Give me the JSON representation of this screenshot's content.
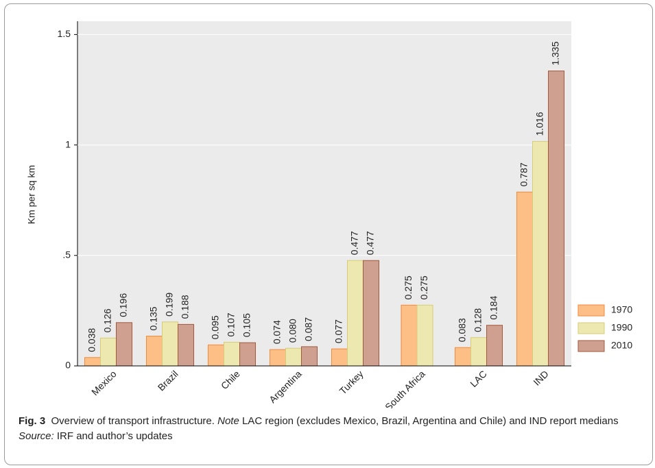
{
  "chart_data": {
    "type": "bar",
    "y_label": "Km per sq km",
    "categories": [
      "Mexico",
      "Brazil",
      "Chile",
      "Argentina",
      "Turkey",
      "South Africa",
      "LAC",
      "IND"
    ],
    "series": [
      {
        "name": "1970",
        "color": "#fdbf86",
        "stroke": "#f08a3c",
        "values": [
          0.038,
          0.135,
          0.095,
          0.074,
          0.077,
          0.275,
          0.083,
          0.787
        ],
        "value_labels": [
          "0.038",
          "0.135",
          "0.095",
          "0.074",
          "0.077",
          "0.275",
          "0.083",
          "0.787"
        ]
      },
      {
        "name": "1990",
        "color": "#ede8b0",
        "stroke": "#d6cc78",
        "values": [
          0.126,
          0.199,
          0.107,
          0.08,
          0.477,
          0.275,
          0.128,
          1.016
        ],
        "value_labels": [
          "0.126",
          "0.199",
          "0.107",
          "0.080",
          "0.477",
          "0.275",
          "0.128",
          "1.016"
        ]
      },
      {
        "name": "2010",
        "color": "#cfa090",
        "stroke": "#a0593e",
        "values": [
          0.196,
          0.188,
          0.105,
          0.087,
          0.477,
          null,
          0.184,
          1.335
        ],
        "value_labels": [
          "0.196",
          "0.188",
          "0.105",
          "0.087",
          "0.477",
          null,
          "0.184",
          "1.335"
        ]
      }
    ],
    "ylim": [
      0,
      1.56
    ],
    "yticks": [
      0,
      {
        "value": 0.5,
        "label": ".5"
      },
      1,
      1.5
    ],
    "grid": true,
    "legend": "right",
    "caption": {
      "label": "Fig. 3",
      "text1": "Overview of transport infrastructure.",
      "note": "Note",
      "text2": "LAC region (excludes Mexico, Brazil, Argentina and Chile) and IND report medians",
      "source": "Source:",
      "text3": "IRF and author’s updates"
    }
  }
}
